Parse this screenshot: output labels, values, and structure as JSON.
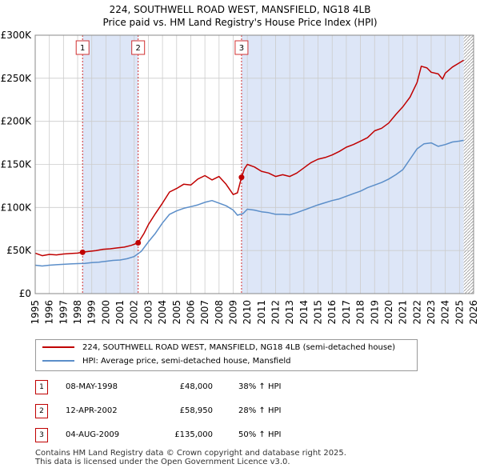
{
  "title_line1": "224, SOUTHWELL ROAD WEST, MANSFIELD, NG18 4LB",
  "title_line2": "Price paid vs. HM Land Registry's House Price Index (HPI)",
  "colors": {
    "property": "#c00000",
    "hpi": "#5b8ec9",
    "shade": "#dde6f7",
    "sale_line": "#d23030",
    "grid": "#cccccc"
  },
  "legend": {
    "property_label": "224, SOUTHWELL ROAD WEST, MANSFIELD, NG18 4LB (semi-detached house)",
    "hpi_label": "HPI: Average price, semi-detached house, Mansfield"
  },
  "sales": [
    {
      "num": "1",
      "date": "08-MAY-1998",
      "price": "£48,000",
      "hpi_change": "38% ↑ HPI"
    },
    {
      "num": "2",
      "date": "12-APR-2002",
      "price": "£58,950",
      "hpi_change": "28% ↑ HPI"
    },
    {
      "num": "3",
      "date": "04-AUG-2009",
      "price": "£135,000",
      "hpi_change": "50% ↑ HPI"
    }
  ],
  "footer": {
    "line1": "Contains HM Land Registry data © Crown copyright and database right 2025.",
    "line2": "This data is licensed under the Open Government Licence v3.0."
  },
  "chart_data": {
    "type": "line",
    "title": "224, SOUTHWELL ROAD WEST, MANSFIELD, NG18 4LB",
    "subtitle": "Price paid vs. HM Land Registry's House Price Index (HPI)",
    "xlabel": "",
    "ylabel": "",
    "xlim": [
      1995,
      2026
    ],
    "ylim": [
      0,
      300000
    ],
    "grid": true,
    "legend_position": "bottom",
    "x_ticks": [
      "1995",
      "1996",
      "1997",
      "1998",
      "1999",
      "2000",
      "2001",
      "2002",
      "2003",
      "2004",
      "2005",
      "2006",
      "2007",
      "2008",
      "2009",
      "2010",
      "2011",
      "2012",
      "2013",
      "2014",
      "2015",
      "2016",
      "2017",
      "2018",
      "2019",
      "2020",
      "2021",
      "2022",
      "2023",
      "2024",
      "2025",
      "2026"
    ],
    "y_ticks": [
      0,
      50000,
      100000,
      150000,
      200000,
      250000,
      300000
    ],
    "y_tick_labels": [
      "£0",
      "£50K",
      "£100K",
      "£150K",
      "£200K",
      "£250K",
      "£300K"
    ],
    "shaded_periods": [
      [
        1998.35,
        2002.28
      ],
      [
        2009.59,
        2026
      ]
    ],
    "hatched_from": 2025.3,
    "series": [
      {
        "name": "224, SOUTHWELL ROAD WEST, MANSFIELD, NG18 4LB (semi-detached house)",
        "color": "#c00000",
        "x": [
          1995.0,
          1995.5,
          1996.0,
          1996.5,
          1997.0,
          1997.5,
          1998.0,
          1998.35,
          1998.8,
          1999.3,
          1999.8,
          2000.3,
          2000.8,
          2001.3,
          2001.8,
          2002.28,
          2002.7,
          2003.0,
          2003.5,
          2004.0,
          2004.5,
          2005.0,
          2005.5,
          2006.0,
          2006.5,
          2007.0,
          2007.5,
          2008.0,
          2008.5,
          2009.0,
          2009.3,
          2009.59,
          2009.8,
          2010.0,
          2010.5,
          2011.0,
          2011.5,
          2012.0,
          2012.5,
          2013.0,
          2013.5,
          2014.0,
          2014.5,
          2015.0,
          2015.5,
          2016.0,
          2016.5,
          2017.0,
          2017.5,
          2018.0,
          2018.5,
          2019.0,
          2019.5,
          2020.0,
          2020.5,
          2021.0,
          2021.5,
          2022.0,
          2022.3,
          2022.7,
          2023.0,
          2023.5,
          2023.8,
          2024.0,
          2024.5,
          2025.0,
          2025.3
        ],
        "values": [
          47000,
          44000,
          45500,
          45000,
          46000,
          46500,
          47000,
          48000,
          49000,
          50000,
          51500,
          52000,
          53000,
          54000,
          56000,
          58950,
          70000,
          80000,
          93000,
          105000,
          118000,
          122000,
          127000,
          126000,
          133000,
          137000,
          132000,
          136000,
          127000,
          115000,
          117000,
          135000,
          145000,
          150000,
          147000,
          142000,
          140000,
          136000,
          138000,
          136000,
          140000,
          146000,
          152000,
          156000,
          158000,
          161000,
          165000,
          170000,
          173000,
          177000,
          181000,
          189000,
          192000,
          198000,
          208000,
          217000,
          228000,
          245000,
          264000,
          262000,
          257000,
          255000,
          249000,
          256000,
          263000,
          268000,
          271000
        ]
      },
      {
        "name": "HPI: Average price, semi-detached house, Mansfield",
        "color": "#5b8ec9",
        "x": [
          1995.0,
          1995.5,
          1996.0,
          1996.5,
          1997.0,
          1997.5,
          1998.0,
          1998.5,
          1999.0,
          1999.5,
          2000.0,
          2000.5,
          2001.0,
          2001.5,
          2002.0,
          2002.5,
          2003.0,
          2003.5,
          2004.0,
          2004.5,
          2005.0,
          2005.5,
          2006.0,
          2006.5,
          2007.0,
          2007.5,
          2008.0,
          2008.5,
          2009.0,
          2009.3,
          2009.7,
          2010.0,
          2010.5,
          2011.0,
          2011.5,
          2012.0,
          2012.5,
          2013.0,
          2013.5,
          2014.0,
          2014.5,
          2015.0,
          2015.5,
          2016.0,
          2016.5,
          2017.0,
          2017.5,
          2018.0,
          2018.5,
          2019.0,
          2019.5,
          2020.0,
          2020.5,
          2021.0,
          2021.5,
          2022.0,
          2022.5,
          2023.0,
          2023.5,
          2024.0,
          2024.5,
          2025.0,
          2025.3
        ],
        "values": [
          33000,
          32000,
          33000,
          33500,
          34000,
          34500,
          34800,
          35000,
          36000,
          36500,
          37500,
          38500,
          39000,
          40500,
          43000,
          49000,
          60000,
          70000,
          82000,
          92000,
          96000,
          99000,
          101000,
          103000,
          106000,
          108000,
          105000,
          102000,
          97000,
          91000,
          93000,
          98000,
          97000,
          95000,
          94000,
          92000,
          92000,
          91500,
          94000,
          97000,
          100000,
          103000,
          105500,
          108000,
          110000,
          113000,
          116000,
          119000,
          123000,
          126000,
          129000,
          133000,
          138000,
          144000,
          156000,
          168000,
          174000,
          175000,
          171000,
          173000,
          176000,
          177000,
          178000
        ]
      }
    ],
    "sale_markers": [
      {
        "label": "1",
        "x": 1998.35,
        "value": 48000
      },
      {
        "label": "2",
        "x": 2002.28,
        "value": 58950
      },
      {
        "label": "3",
        "x": 2009.59,
        "value": 135000
      }
    ]
  }
}
